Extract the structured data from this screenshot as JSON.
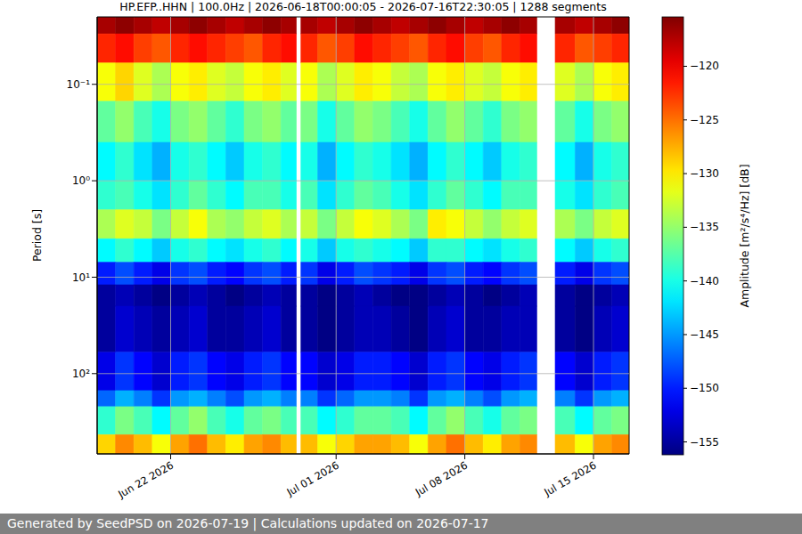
{
  "chart_data": {
    "type": "heatmap",
    "title": "HP.EFP..HHN | 100.0Hz | 2026-06-18T00:00:05 - 2026-07-16T22:30:05 | 1288 segments",
    "ylabel": "Period [s]",
    "footer": "Generated by SeedPSD on 2026-07-19 | Calculations updated on 2026-07-17",
    "log": "y",
    "grid": true,
    "xlim": [
      "2026-06-18T00:00:05",
      "2026-07-16T22:30:05"
    ],
    "xticks": [
      {
        "value": "2026-06-22",
        "label": "Jun 22 2026"
      },
      {
        "value": "2026-07-01",
        "label": "Jul 01 2026"
      },
      {
        "value": "2026-07-08",
        "label": "Jul 08 2026"
      },
      {
        "value": "2026-07-15",
        "label": "Jul 15 2026"
      }
    ],
    "ylim": [
      0.02,
      680
    ],
    "yticks": [
      {
        "value": 0.1,
        "label": "10⁻¹"
      },
      {
        "value": 1,
        "label": "10⁰"
      },
      {
        "value": 10,
        "label": "10¹"
      },
      {
        "value": 100,
        "label": "10²"
      }
    ],
    "x_edges": [
      "2026-06-18T00:00:05",
      "2026-06-19",
      "2026-06-20",
      "2026-06-21",
      "2026-06-22",
      "2026-06-23",
      "2026-06-24",
      "2026-06-25",
      "2026-06-26",
      "2026-06-27",
      "2026-06-28",
      "2026-06-28T20:00:00",
      "2026-06-29T02:00:00",
      "2026-06-30",
      "2026-07-01",
      "2026-07-02",
      "2026-07-03",
      "2026-07-04",
      "2026-07-05",
      "2026-07-06",
      "2026-07-07",
      "2026-07-08",
      "2026-07-09",
      "2026-07-10",
      "2026-07-11",
      "2026-07-11T22:00:00",
      "2026-07-12T22:00:00",
      "2026-07-14",
      "2026-07-15",
      "2026-07-16",
      "2026-07-16T22:30:05"
    ],
    "y_edges": [
      0.019,
      0.03,
      0.06,
      0.15,
      0.4,
      1,
      2,
      4,
      7,
      12,
      20,
      60,
      150,
      220,
      430,
      680
    ],
    "cells": [
      [
        -117,
        -116,
        -117,
        -118,
        -117,
        -116,
        -117,
        -118,
        -117,
        -116,
        -117,
        null,
        -117,
        -118,
        -117,
        -116,
        -117,
        -118,
        -117,
        -116,
        -117,
        -118,
        -117,
        -116,
        -117,
        null,
        -117,
        -118,
        -117,
        -116
      ],
      [
        -122,
        -121,
        -123,
        -124,
        -122,
        -121,
        -122,
        -123,
        -124,
        -122,
        -121,
        null,
        -122,
        -124,
        -123,
        -121,
        -122,
        -123,
        -124,
        -122,
        -121,
        -123,
        -124,
        -122,
        -121,
        null,
        -122,
        -124,
        -123,
        -122
      ],
      [
        -131,
        -129,
        -132,
        -134,
        -131,
        -130,
        -132,
        -133,
        -131,
        -130,
        -132,
        null,
        -131,
        -134,
        -132,
        -130,
        -131,
        -133,
        -134,
        -131,
        -130,
        -132,
        -133,
        -131,
        -130,
        null,
        -132,
        -134,
        -131,
        -130
      ],
      [
        -137,
        -135,
        -138,
        -140,
        -136,
        -135,
        -137,
        -139,
        -136,
        -135,
        -137,
        null,
        -136,
        -140,
        -137,
        -135,
        -136,
        -138,
        -140,
        -137,
        -135,
        -137,
        -139,
        -136,
        -135,
        null,
        -137,
        -140,
        -136,
        -135
      ],
      [
        -141,
        -139,
        -142,
        -144,
        -140,
        -139,
        -141,
        -143,
        -140,
        -139,
        -141,
        null,
        -140,
        -144,
        -141,
        -139,
        -140,
        -142,
        -144,
        -141,
        -139,
        -141,
        -143,
        -140,
        -139,
        null,
        -141,
        -144,
        -140,
        -139
      ],
      [
        -139,
        -138,
        -140,
        -142,
        -139,
        -137,
        -139,
        -141,
        -138,
        -138,
        -140,
        null,
        -138,
        -142,
        -139,
        -137,
        -138,
        -140,
        -142,
        -139,
        -137,
        -139,
        -141,
        -138,
        -138,
        null,
        -140,
        -142,
        -139,
        -138
      ],
      [
        -134,
        -132,
        -133,
        -136,
        -133,
        -131,
        -134,
        -135,
        -133,
        -132,
        -134,
        null,
        -133,
        -136,
        -133,
        -131,
        -132,
        -134,
        -136,
        -130,
        -131,
        -133,
        -135,
        -133,
        -132,
        null,
        -134,
        -136,
        -133,
        -132
      ],
      [
        -141,
        -139,
        -141,
        -143,
        -140,
        -139,
        -141,
        -142,
        -140,
        -139,
        -141,
        null,
        -140,
        -143,
        -140,
        -139,
        -140,
        -141,
        -143,
        -139,
        -139,
        -141,
        -142,
        -140,
        -139,
        null,
        -141,
        -143,
        -140,
        -139
      ],
      [
        -150,
        -148,
        -150,
        -152,
        -149,
        -148,
        -150,
        -151,
        -149,
        -148,
        -150,
        null,
        -149,
        -152,
        -150,
        -148,
        -149,
        -150,
        -152,
        -149,
        -148,
        -150,
        -151,
        -149,
        -148,
        null,
        -150,
        -152,
        -149,
        -148
      ],
      [
        -155,
        -154,
        -155,
        -156,
        -155,
        -154,
        -155,
        -156,
        -155,
        -154,
        -155,
        null,
        -155,
        -156,
        -155,
        -154,
        -155,
        -156,
        -156,
        -155,
        -154,
        -155,
        -156,
        -155,
        -154,
        null,
        -155,
        -156,
        -155,
        -154
      ],
      [
        -155,
        -153,
        -154,
        -155,
        -154,
        -153,
        -155,
        -155,
        -154,
        -153,
        -155,
        null,
        -155,
        -156,
        -155,
        -154,
        -154,
        -155,
        -156,
        -154,
        -153,
        -155,
        -155,
        -154,
        -154,
        null,
        -155,
        -156,
        -154,
        -153
      ],
      [
        -152,
        -149,
        -151,
        -153,
        -150,
        -149,
        -151,
        -152,
        -150,
        -149,
        -151,
        null,
        -151,
        -153,
        -152,
        -150,
        -150,
        -151,
        -153,
        -150,
        -149,
        -151,
        -152,
        -150,
        -149,
        null,
        -151,
        -153,
        -150,
        -149
      ],
      [
        -147,
        -144,
        -146,
        -149,
        -145,
        -144,
        -146,
        -148,
        -145,
        -144,
        -146,
        null,
        -146,
        -149,
        -147,
        -145,
        -145,
        -146,
        -149,
        -145,
        -144,
        -146,
        -148,
        -145,
        -144,
        null,
        -146,
        -149,
        -145,
        -144
      ],
      [
        -139,
        -136,
        -138,
        -141,
        -137,
        -135,
        -138,
        -140,
        -137,
        -136,
        -138,
        null,
        -138,
        -141,
        -139,
        -137,
        -137,
        -138,
        -141,
        -137,
        -135,
        -138,
        -140,
        -137,
        -136,
        null,
        -138,
        -141,
        -137,
        -136
      ],
      [
        -129,
        -126,
        -128,
        -131,
        -127,
        -125,
        -128,
        -130,
        -127,
        -126,
        -128,
        null,
        -128,
        -131,
        -129,
        -127,
        -127,
        -128,
        -131,
        -127,
        -125,
        -128,
        -130,
        -127,
        -126,
        null,
        -128,
        -131,
        -127,
        -126
      ]
    ],
    "colorbar": {
      "label": "Amplitude [m²/s⁴/Hz] [dB]",
      "range": [
        -156.2,
        -115.4
      ],
      "ticks": [
        {
          "value": -155,
          "label": "−155"
        },
        {
          "value": -150,
          "label": "−150"
        },
        {
          "value": -145,
          "label": "−145"
        },
        {
          "value": -140,
          "label": "−140"
        },
        {
          "value": -135,
          "label": "−135"
        },
        {
          "value": -130,
          "label": "−130"
        },
        {
          "value": -125,
          "label": "−125"
        },
        {
          "value": -120,
          "label": "−120"
        }
      ]
    }
  }
}
